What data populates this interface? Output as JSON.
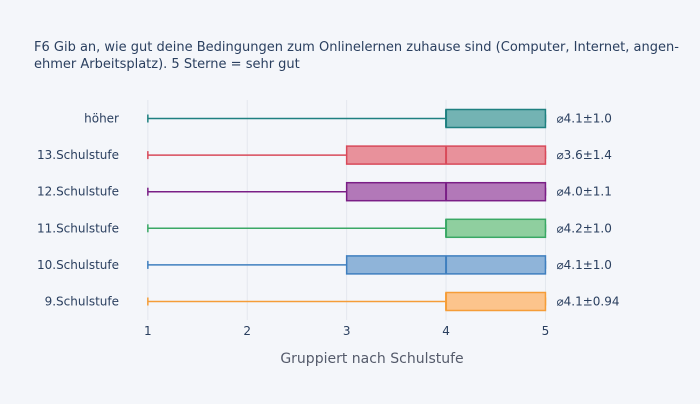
{
  "chart_data": {
    "type": "box",
    "orientation": "horizontal",
    "title_lines": [
      "F6 Gib an, wie gut deine Bedingungen zum Onlinelernen zuhause sind (Computer, Internet, angen-",
      "ehmer Arbeitsplatz). 5 Sterne = sehr gut"
    ],
    "xlabel": "Gruppiert nach Schulstufe",
    "ylabel": "",
    "xlim": [
      0.75,
      5.75
    ],
    "xticks": [
      "1",
      "2",
      "3",
      "4",
      "5"
    ],
    "grid": true,
    "legend": "none",
    "series": [
      {
        "category": "höher",
        "color": "#1f8080",
        "fill": "#73b3b3",
        "min": 1,
        "q1": 4,
        "median": 4,
        "q3": 5,
        "max": 5,
        "annotation": "⌀4.1±1.0"
      },
      {
        "category": "13.Schulstufe",
        "color": "#d84a5a",
        "fill": "#e8919b",
        "min": 1,
        "q1": 3,
        "median": 4,
        "q3": 5,
        "max": 5,
        "annotation": "⌀3.6±1.4"
      },
      {
        "category": "12.Schulstufe",
        "color": "#7a1f86",
        "fill": "#b278b8",
        "min": 1,
        "q1": 3,
        "median": 4,
        "q3": 5,
        "max": 5,
        "annotation": "⌀4.0±1.1"
      },
      {
        "category": "11.Schulstufe",
        "color": "#3aa865",
        "fill": "#8fcf9f",
        "min": 1,
        "q1": 4,
        "median": 4,
        "q3": 5,
        "max": 5,
        "annotation": "⌀4.2±1.0"
      },
      {
        "category": "10.Schulstufe",
        "color": "#3f7fbf",
        "fill": "#8fb4d9",
        "min": 1,
        "q1": 3,
        "median": 4,
        "q3": 5,
        "max": 5,
        "annotation": "⌀4.1±1.0"
      },
      {
        "category": "9.Schulstufe",
        "color": "#f59d38",
        "fill": "#fcc48c",
        "min": 1,
        "q1": 4,
        "median": 4,
        "q3": 5,
        "max": 5,
        "annotation": "⌀4.1±0.94"
      }
    ]
  }
}
